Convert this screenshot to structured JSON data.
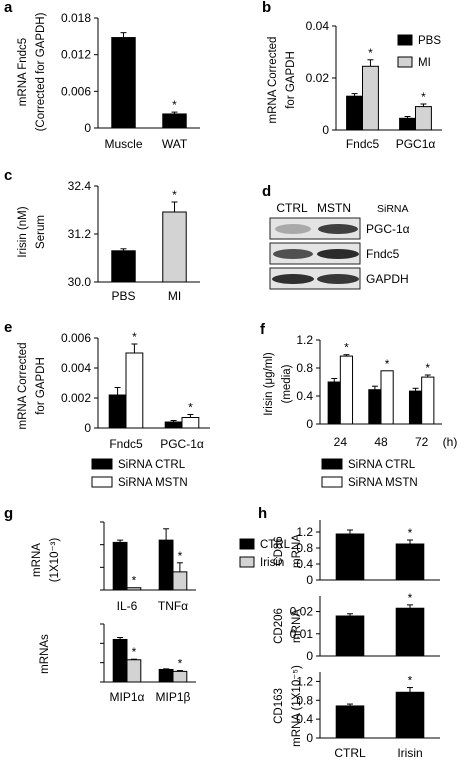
{
  "chart_data": [
    {
      "id": "a",
      "type": "bar",
      "panel_label": "a",
      "ylabel": [
        "mRNA Fndc5",
        "(Corrected for GAPDH)"
      ],
      "categories": [
        "Muscle",
        "WAT"
      ],
      "series": [
        {
          "values": [
            0.0148,
            0.0023
          ],
          "errors": [
            0.0008,
            0.0003
          ],
          "color": "#000000",
          "stroke": "#000000"
        }
      ],
      "ylim": [
        0,
        0.018
      ],
      "yticks": [
        0,
        0.006,
        0.012,
        0.018
      ],
      "ytick_labels": [
        "0",
        "0.006",
        "0.012",
        "0.018"
      ],
      "stars": [
        [
          false,
          true
        ]
      ]
    },
    {
      "id": "b",
      "type": "bar",
      "panel_label": "b",
      "ylabel": [
        "mRNA Corrected",
        "for GAPDH"
      ],
      "categories": [
        "Fndc5",
        "PGC1α"
      ],
      "series": [
        {
          "name": "PBS",
          "values": [
            0.013,
            0.0045
          ],
          "errors": [
            0.001,
            0.0007
          ],
          "color": "#000000",
          "stroke": "#000000"
        },
        {
          "name": "MI",
          "values": [
            0.0245,
            0.009
          ],
          "errors": [
            0.0025,
            0.001
          ],
          "color": "#d3d3d3",
          "stroke": "#000000"
        }
      ],
      "ylim": [
        0,
        0.04
      ],
      "yticks": [
        0,
        0.02,
        0.04
      ],
      "ytick_labels": [
        "0",
        "0.02",
        "0.04"
      ],
      "stars": [
        [
          false,
          false
        ],
        [
          true,
          true
        ]
      ],
      "legend": [
        "PBS",
        "MI"
      ]
    },
    {
      "id": "c",
      "type": "bar",
      "panel_label": "c",
      "ylabel": [
        "Irisin (nM)",
        "Serum"
      ],
      "categories": [
        "PBS",
        "MI"
      ],
      "series": [
        {
          "values": [
            30.78,
            31.75
          ],
          "errors": [
            0.05,
            0.25
          ],
          "colors": [
            "#000000",
            "#d3d3d3"
          ],
          "stroke": "#000000"
        }
      ],
      "ylim": [
        30.0,
        32.4
      ],
      "yticks": [
        30.0,
        31.2,
        32.4
      ],
      "ytick_labels": [
        "30.0",
        "31.2",
        "32.4"
      ],
      "stars": [
        [
          false,
          true
        ]
      ]
    },
    {
      "id": "e",
      "type": "bar",
      "panel_label": "e",
      "ylabel": [
        "mRNA Corrected",
        "for GAPDH"
      ],
      "categories": [
        "Fndc5",
        "PGC-1α"
      ],
      "series": [
        {
          "name": "SiRNA CTRL",
          "values": [
            0.0022,
            0.0004
          ],
          "errors": [
            0.0005,
            0.0001
          ],
          "color": "#000000",
          "stroke": "#000000"
        },
        {
          "name": "SiRNA MSTN",
          "values": [
            0.005,
            0.0007
          ],
          "errors": [
            0.0006,
            0.0002
          ],
          "color": "#ffffff",
          "stroke": "#000000"
        }
      ],
      "ylim": [
        0,
        0.006
      ],
      "yticks": [
        0,
        0.002,
        0.004,
        0.006
      ],
      "ytick_labels": [
        "0",
        "0.002",
        "0.004",
        "0.006"
      ],
      "stars": [
        [
          false,
          false
        ],
        [
          true,
          true
        ]
      ],
      "legend": [
        "SiRNA CTRL",
        "SiRNA MSTN"
      ]
    },
    {
      "id": "f",
      "type": "bar",
      "panel_label": "f",
      "ylabel": [
        "Irisin (μg/ml)",
        "(media)"
      ],
      "categories": [
        "24",
        "48",
        "72"
      ],
      "x_unit": "(h)",
      "series": [
        {
          "name": "SiRNA CTRL",
          "values": [
            0.6,
            0.49,
            0.47
          ],
          "errors": [
            0.05,
            0.05,
            0.04
          ],
          "color": "#000000",
          "stroke": "#000000"
        },
        {
          "name": "SiRNA MSTN",
          "values": [
            0.97,
            0.76,
            0.67
          ],
          "errors": [
            0.02,
            0.0,
            0.03
          ],
          "color": "#ffffff",
          "stroke": "#000000"
        }
      ],
      "ylim": [
        0,
        1.2
      ],
      "yticks": [
        0,
        0.4,
        0.8,
        1.2
      ],
      "ytick_labels": [
        "0",
        "0.4",
        "0.8",
        "1.2"
      ],
      "stars": [
        [
          false,
          false,
          false
        ],
        [
          true,
          true,
          true
        ]
      ],
      "legend": [
        "SiRNA CTRL",
        "SiRNA MSTN"
      ]
    },
    {
      "id": "g1",
      "type": "bar",
      "panel_label": "g",
      "ylabel": [
        "mRNA",
        "(1X10⁻³)"
      ],
      "categories": [
        "IL-6",
        "TNFα"
      ],
      "series": [
        {
          "name": "CTRL",
          "values": [
            0.21,
            0.22
          ],
          "errors": [
            0.01,
            0.05
          ],
          "color": "#000000",
          "stroke": "#000000"
        },
        {
          "name": "Irisin",
          "values": [
            0.01,
            0.08
          ],
          "errors": [
            0.0,
            0.04
          ],
          "color": "#d3d3d3",
          "stroke": "#000000"
        }
      ],
      "ylim": [
        0,
        0.3
      ],
      "yticks": [
        0,
        0.1,
        0.2,
        0.3
      ],
      "ytick_labels": [
        "",
        "",
        "",
        ""
      ],
      "stars": [
        [
          false,
          false
        ],
        [
          true,
          true
        ]
      ],
      "legend": [
        "CTRL",
        "Irisin"
      ]
    },
    {
      "id": "g2",
      "type": "bar",
      "ylabel": [
        "mRNAs"
      ],
      "categories": [
        "MIP1α",
        "MIP1β"
      ],
      "series": [
        {
          "name": "CTRL",
          "values": [
            0.22,
            0.065
          ],
          "errors": [
            0.01,
            0.003
          ],
          "color": "#000000",
          "stroke": "#000000"
        },
        {
          "name": "Irisin",
          "values": [
            0.115,
            0.055
          ],
          "errors": [
            0.003,
            0.004
          ],
          "color": "#d3d3d3",
          "stroke": "#000000"
        }
      ],
      "ylim": [
        0,
        0.3
      ],
      "yticks": [
        0,
        0.1,
        0.2,
        0.3
      ],
      "ytick_labels": [
        "",
        "",
        "",
        ""
      ],
      "stars": [
        [
          false,
          false
        ],
        [
          true,
          true
        ]
      ]
    },
    {
      "id": "h1",
      "type": "bar",
      "panel_label": "h",
      "ylabel": [
        "CD86",
        "mRNA"
      ],
      "categories": [
        "CTRL",
        "Irisin"
      ],
      "show_xticklabels": false,
      "series": [
        {
          "values": [
            1.15,
            0.9
          ],
          "errors": [
            0.1,
            0.1
          ],
          "color": "#000000",
          "stroke": "#000000"
        }
      ],
      "ylim": [
        0,
        1.5
      ],
      "yticks": [
        0,
        0.4,
        0.8,
        1.2
      ],
      "ytick_labels": [
        "0",
        "0.4",
        "0.8",
        "1.2"
      ],
      "stars": [
        [
          false,
          true
        ]
      ]
    },
    {
      "id": "h2",
      "type": "bar",
      "ylabel": [
        "CD206",
        "mRNA"
      ],
      "categories": [
        "CTRL",
        "Irisin"
      ],
      "show_xticklabels": false,
      "series": [
        {
          "values": [
            0.018,
            0.0215
          ],
          "errors": [
            0.001,
            0.0015
          ],
          "color": "#000000",
          "stroke": "#000000"
        }
      ],
      "ylim": [
        0,
        0.027
      ],
      "yticks": [
        0,
        0.01,
        0.02
      ],
      "ytick_labels": [
        "0",
        "0.01",
        "0.02"
      ],
      "stars": [
        [
          false,
          true
        ]
      ]
    },
    {
      "id": "h3",
      "type": "bar",
      "ylabel": [
        "CD163",
        "mRNA (1X10⁻⁵)"
      ],
      "categories": [
        "CTRL",
        "Irisin"
      ],
      "series": [
        {
          "values": [
            0.68,
            0.97
          ],
          "errors": [
            0.04,
            0.1
          ],
          "color": "#000000",
          "stroke": "#000000"
        }
      ],
      "ylim": [
        0,
        1.4
      ],
      "yticks": [
        0,
        0.4,
        0.8,
        1.2
      ],
      "ytick_labels": [
        "0",
        "0.4",
        "0.8",
        "1.2"
      ],
      "stars": [
        [
          false,
          true
        ]
      ]
    }
  ],
  "blot_d": {
    "panel_label": "d",
    "headers": [
      "CTRL",
      "MSTN",
      "SiRNA"
    ],
    "rows": [
      "PGC-1α",
      "Fndc5",
      "GAPDH"
    ]
  }
}
